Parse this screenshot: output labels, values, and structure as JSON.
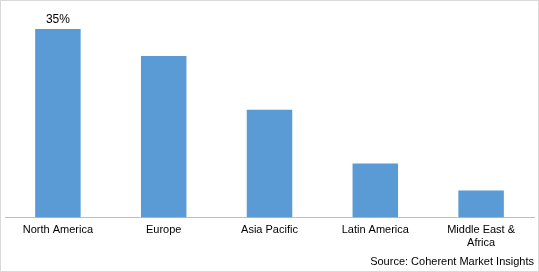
{
  "chart_data": {
    "type": "bar",
    "categories": [
      "North America",
      "Europe",
      "Asia Pacific",
      "Latin America",
      "Middle East & Africa"
    ],
    "values": [
      35,
      30,
      20,
      10,
      5
    ],
    "value_labels": [
      "35%",
      null,
      null,
      null,
      null
    ],
    "data_labels": true,
    "color": "#5b9bd5",
    "grid": false,
    "tick_labels": "x",
    "source": "Source: Coherent Market Insights"
  }
}
